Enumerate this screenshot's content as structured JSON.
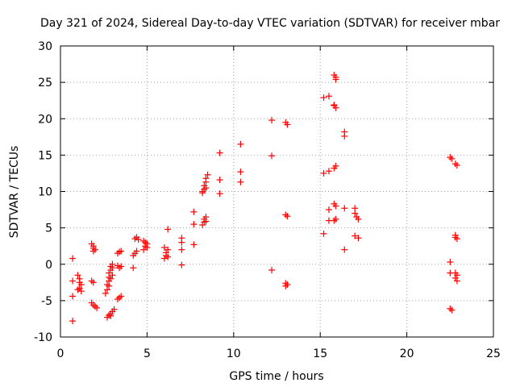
{
  "chart_data": {
    "type": "scatter",
    "title": "Day 321 of 2024, Sidereal Day-to-day VTEC variation (SDTVAR) for receiver mbar",
    "xlabel": "GPS time / hours",
    "ylabel": "SDTVAR / TECUs",
    "xlim": [
      0,
      25
    ],
    "ylim": [
      -10,
      30
    ],
    "xticks": [
      "0",
      "5",
      "10",
      "15",
      "20",
      "25"
    ],
    "yticks": [
      "-10",
      "-5",
      "0",
      "5",
      "10",
      "15",
      "20",
      "25",
      "30"
    ],
    "grid": true,
    "marker": "+",
    "color": "#ff0000",
    "series": [
      {
        "name": "SDTVAR",
        "points": [
          [
            0.7,
            -7.8
          ],
          [
            0.7,
            0.8
          ],
          [
            0.7,
            -2.3
          ],
          [
            0.7,
            -4.4
          ],
          [
            1.0,
            -1.5
          ],
          [
            1.1,
            -2.0
          ],
          [
            1.1,
            -2.5
          ],
          [
            1.2,
            -2.8
          ],
          [
            1.1,
            -3.3
          ],
          [
            1.0,
            -3.5
          ],
          [
            1.2,
            -3.7
          ],
          [
            1.8,
            2.8
          ],
          [
            1.9,
            2.5
          ],
          [
            1.9,
            2.2
          ],
          [
            2.0,
            2.0
          ],
          [
            1.9,
            1.8
          ],
          [
            1.8,
            -2.3
          ],
          [
            1.9,
            -2.5
          ],
          [
            1.8,
            -5.3
          ],
          [
            1.9,
            -5.6
          ],
          [
            2.0,
            -5.8
          ],
          [
            2.1,
            -6.0
          ],
          [
            2.6,
            -4.0
          ],
          [
            2.7,
            -3.5
          ],
          [
            2.7,
            -2.8
          ],
          [
            2.8,
            -2.3
          ],
          [
            2.8,
            -1.8
          ],
          [
            2.8,
            -1.2
          ],
          [
            2.9,
            -0.8
          ],
          [
            2.9,
            -0.3
          ],
          [
            3.0,
            0.0
          ],
          [
            2.9,
            -2.0
          ],
          [
            2.8,
            -3.0
          ],
          [
            3.0,
            -1.5
          ],
          [
            3.0,
            -0.5
          ],
          [
            2.7,
            -7.3
          ],
          [
            2.8,
            -7.0
          ],
          [
            2.9,
            -6.8
          ],
          [
            3.0,
            -6.5
          ],
          [
            3.1,
            -6.2
          ],
          [
            2.9,
            -7.1
          ],
          [
            3.3,
            -0.2
          ],
          [
            3.4,
            -0.5
          ],
          [
            3.5,
            -0.3
          ],
          [
            3.3,
            1.5
          ],
          [
            3.4,
            1.7
          ],
          [
            3.5,
            1.8
          ],
          [
            3.3,
            -4.8
          ],
          [
            3.4,
            -4.6
          ],
          [
            3.5,
            -4.4
          ],
          [
            4.2,
            1.2
          ],
          [
            4.3,
            1.5
          ],
          [
            4.4,
            1.8
          ],
          [
            4.3,
            3.5
          ],
          [
            4.4,
            3.7
          ],
          [
            4.5,
            3.4
          ],
          [
            4.2,
            -0.5
          ],
          [
            4.8,
            2.0
          ],
          [
            4.9,
            2.5
          ],
          [
            4.9,
            3.0
          ],
          [
            5.0,
            2.8
          ],
          [
            5.0,
            2.3
          ],
          [
            4.8,
            3.2
          ],
          [
            6.0,
            0.8
          ],
          [
            6.1,
            1.2
          ],
          [
            6.1,
            1.6
          ],
          [
            6.2,
            2.0
          ],
          [
            6.0,
            2.3
          ],
          [
            6.2,
            1.0
          ],
          [
            6.2,
            4.8
          ],
          [
            7.0,
            -0.1
          ],
          [
            7.0,
            3.0
          ],
          [
            7.0,
            2.0
          ],
          [
            7.0,
            3.6
          ],
          [
            7.7,
            2.7
          ],
          [
            7.7,
            5.5
          ],
          [
            7.7,
            7.2
          ],
          [
            8.2,
            5.4
          ],
          [
            8.3,
            5.8
          ],
          [
            8.3,
            6.2
          ],
          [
            8.4,
            6.5
          ],
          [
            8.4,
            5.9
          ],
          [
            8.2,
            9.8
          ],
          [
            8.3,
            10.3
          ],
          [
            8.3,
            10.8
          ],
          [
            8.4,
            11.3
          ],
          [
            8.4,
            11.8
          ],
          [
            8.5,
            12.3
          ],
          [
            8.2,
            10.0
          ],
          [
            8.4,
            10.5
          ],
          [
            9.2,
            15.3
          ],
          [
            9.2,
            11.6
          ],
          [
            9.2,
            9.7
          ],
          [
            10.4,
            16.5
          ],
          [
            10.4,
            12.7
          ],
          [
            10.4,
            11.3
          ],
          [
            12.2,
            19.8
          ],
          [
            12.2,
            14.9
          ],
          [
            12.2,
            -0.8
          ],
          [
            13.0,
            19.5
          ],
          [
            13.1,
            19.2
          ],
          [
            13.0,
            6.8
          ],
          [
            13.1,
            6.6
          ],
          [
            13.0,
            -2.6
          ],
          [
            13.1,
            -2.8
          ],
          [
            13.0,
            -3.0
          ],
          [
            15.2,
            22.9
          ],
          [
            15.5,
            23.1
          ],
          [
            15.8,
            26.0
          ],
          [
            15.9,
            25.7
          ],
          [
            15.9,
            25.4
          ],
          [
            15.8,
            21.8
          ],
          [
            15.9,
            21.5
          ],
          [
            15.8,
            21.9
          ],
          [
            15.2,
            12.5
          ],
          [
            15.5,
            12.8
          ],
          [
            15.8,
            13.2
          ],
          [
            15.9,
            13.5
          ],
          [
            15.8,
            8.3
          ],
          [
            15.9,
            8.0
          ],
          [
            15.5,
            7.5
          ],
          [
            15.5,
            6.0
          ],
          [
            15.8,
            6.0
          ],
          [
            15.9,
            6.2
          ],
          [
            15.2,
            4.2
          ],
          [
            16.4,
            18.2
          ],
          [
            16.4,
            17.6
          ],
          [
            16.4,
            7.7
          ],
          [
            16.4,
            2.0
          ],
          [
            17.0,
            7.7
          ],
          [
            17.0,
            7.0
          ],
          [
            17.1,
            6.5
          ],
          [
            17.2,
            6.2
          ],
          [
            17.0,
            3.9
          ],
          [
            17.2,
            3.6
          ],
          [
            22.5,
            14.7
          ],
          [
            22.6,
            14.5
          ],
          [
            22.8,
            13.8
          ],
          [
            22.9,
            13.6
          ],
          [
            22.8,
            4.0
          ],
          [
            22.9,
            3.5
          ],
          [
            22.8,
            3.7
          ],
          [
            22.5,
            0.3
          ],
          [
            22.5,
            -1.2
          ],
          [
            22.8,
            -1.2
          ],
          [
            22.9,
            -1.5
          ],
          [
            22.8,
            -1.9
          ],
          [
            22.9,
            -2.3
          ],
          [
            22.5,
            -6.1
          ],
          [
            22.6,
            -6.3
          ]
        ]
      }
    ]
  }
}
